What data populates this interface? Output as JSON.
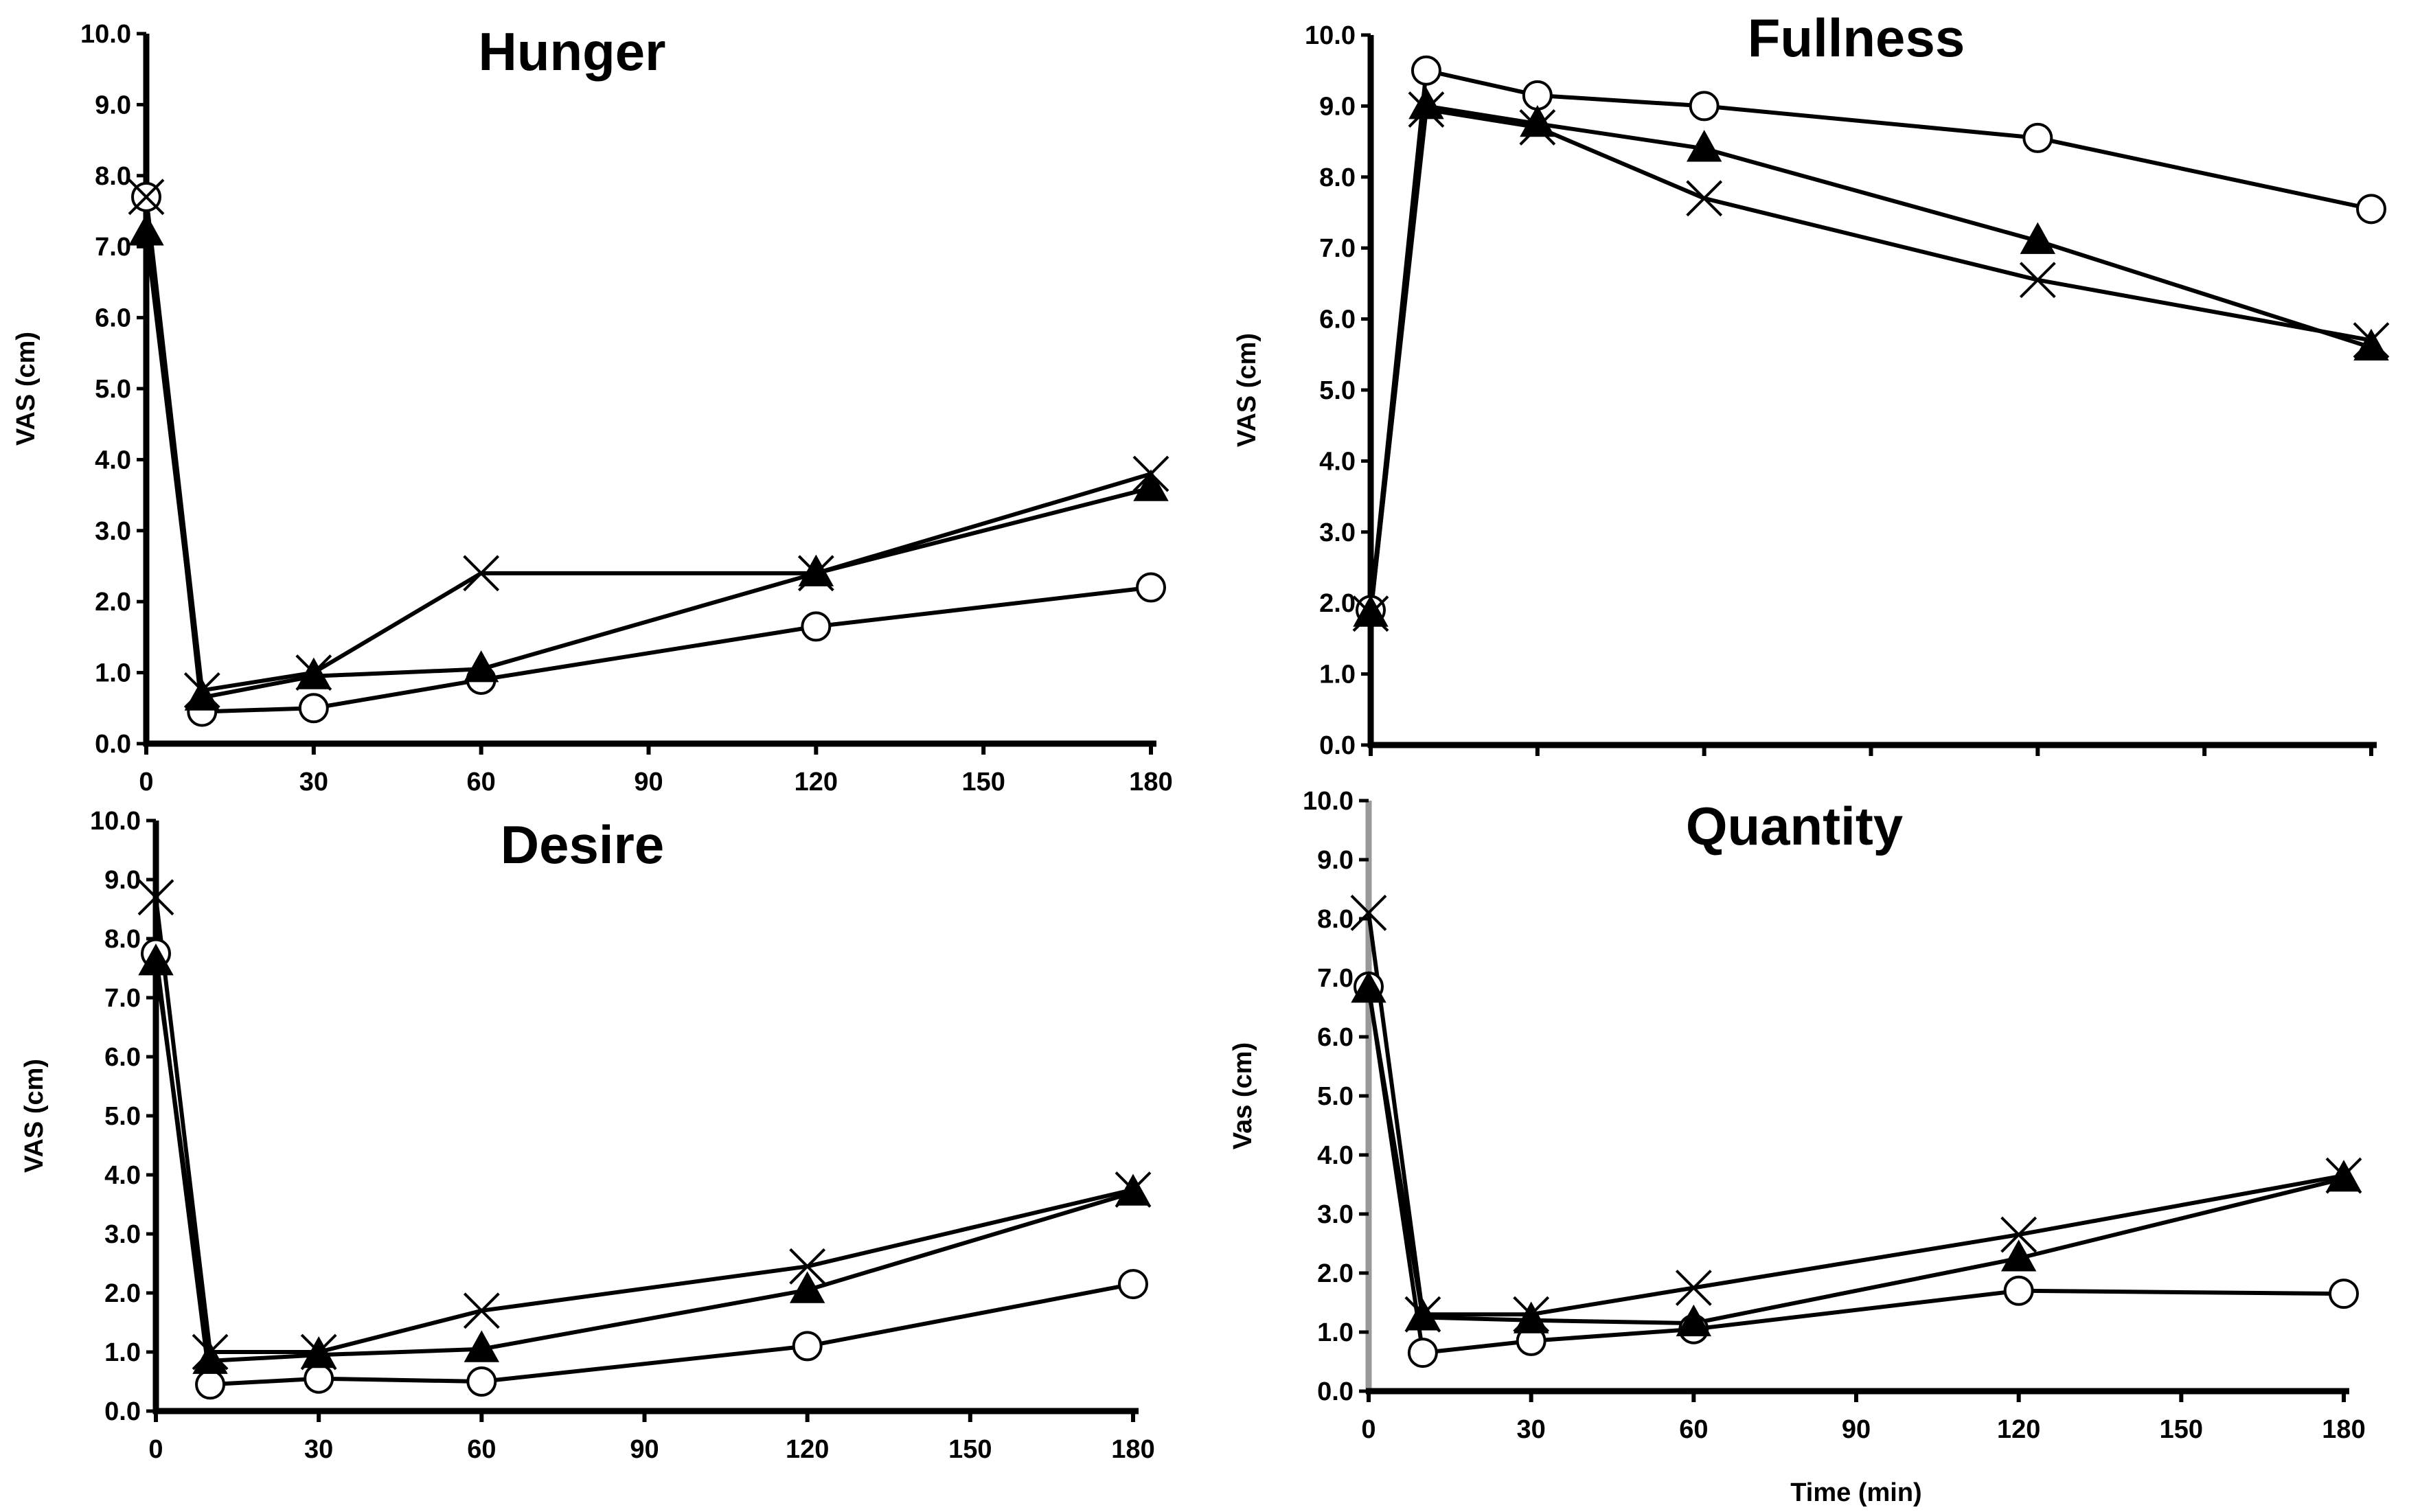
{
  "chart_data": [
    {
      "type": "line",
      "title": "Hunger",
      "xlabel": "",
      "ylabel": "VAS (cm)",
      "xlim": [
        0,
        180
      ],
      "ylim": [
        0,
        10
      ],
      "x_ticks": [
        "0",
        "30",
        "60",
        "90",
        "120",
        "150",
        "180"
      ],
      "y_ticks": [
        "0.0",
        "1.0",
        "2.0",
        "3.0",
        "4.0",
        "5.0",
        "6.0",
        "7.0",
        "8.0",
        "9.0",
        "10.0"
      ],
      "series": [
        {
          "name": "circle",
          "marker": "circle",
          "x": [
            0,
            10,
            30,
            60,
            120,
            180
          ],
          "values": [
            7.7,
            0.45,
            0.5,
            0.9,
            1.65,
            2.2
          ]
        },
        {
          "name": "triangle",
          "marker": "triangle",
          "x": [
            0,
            10,
            30,
            60,
            120,
            180
          ],
          "values": [
            7.2,
            0.65,
            0.95,
            1.05,
            2.4,
            3.6
          ]
        },
        {
          "name": "cross",
          "marker": "cross",
          "x": [
            0,
            10,
            30,
            60,
            120,
            180
          ],
          "values": [
            7.7,
            0.75,
            1.0,
            2.4,
            2.4,
            3.8
          ]
        }
      ]
    },
    {
      "type": "line",
      "title": "Fullness",
      "xlabel": "",
      "ylabel": "VAS (cm)",
      "xlim": [
        0,
        180
      ],
      "ylim": [
        0,
        10
      ],
      "x_ticks": [],
      "y_ticks": [
        "0.0",
        "1.0",
        "2.0",
        "3.0",
        "4.0",
        "5.0",
        "6.0",
        "7.0",
        "8.0",
        "9.0",
        "10.0"
      ],
      "series": [
        {
          "name": "circle",
          "marker": "circle",
          "x": [
            0,
            10,
            30,
            60,
            120,
            180
          ],
          "values": [
            1.9,
            9.5,
            9.15,
            9.0,
            8.55,
            7.55
          ]
        },
        {
          "name": "triangle",
          "marker": "triangle",
          "x": [
            0,
            10,
            30,
            60,
            120,
            180
          ],
          "values": [
            1.85,
            9.0,
            8.75,
            8.4,
            7.1,
            5.6
          ]
        },
        {
          "name": "cross",
          "marker": "cross",
          "x": [
            0,
            10,
            30,
            60,
            120,
            180
          ],
          "values": [
            1.85,
            8.95,
            8.7,
            7.7,
            6.55,
            5.7
          ]
        }
      ]
    },
    {
      "type": "line",
      "title": "Desire",
      "xlabel": "",
      "ylabel": "VAS (cm)",
      "xlim": [
        0,
        180
      ],
      "ylim": [
        0,
        10
      ],
      "x_ticks": [
        "0",
        "30",
        "60",
        "90",
        "120",
        "150",
        "180"
      ],
      "y_ticks": [
        "0.0",
        "1.0",
        "2.0",
        "3.0",
        "4.0",
        "5.0",
        "6.0",
        "7.0",
        "8.0",
        "9.0",
        "10.0"
      ],
      "series": [
        {
          "name": "circle",
          "marker": "circle",
          "x": [
            0,
            10,
            30,
            60,
            120,
            180
          ],
          "values": [
            7.75,
            0.45,
            0.55,
            0.5,
            1.1,
            2.15
          ]
        },
        {
          "name": "triangle",
          "marker": "triangle",
          "x": [
            0,
            10,
            30,
            60,
            120,
            180
          ],
          "values": [
            7.6,
            0.85,
            0.95,
            1.05,
            2.05,
            3.7
          ]
        },
        {
          "name": "cross",
          "marker": "cross",
          "x": [
            0,
            10,
            30,
            60,
            120,
            180
          ],
          "values": [
            8.7,
            1.0,
            1.0,
            1.7,
            2.45,
            3.75
          ]
        }
      ]
    },
    {
      "type": "line",
      "title": "Quantity",
      "xlabel": "Time (min)",
      "ylabel": "Vas (cm)",
      "xlim": [
        0,
        180
      ],
      "ylim": [
        0,
        10
      ],
      "x_ticks": [
        "0",
        "30",
        "60",
        "90",
        "120",
        "150",
        "180"
      ],
      "y_ticks": [
        "0.0",
        "1.0",
        "2.0",
        "3.0",
        "4.0",
        "5.0",
        "6.0",
        "7.0",
        "8.0",
        "9.0",
        "10.0"
      ],
      "series": [
        {
          "name": "circle",
          "marker": "circle",
          "x": [
            0,
            10,
            30,
            60,
            120,
            180
          ],
          "values": [
            6.85,
            0.65,
            0.85,
            1.05,
            1.7,
            1.65
          ]
        },
        {
          "name": "triangle",
          "marker": "triangle",
          "x": [
            0,
            10,
            30,
            60,
            120,
            180
          ],
          "values": [
            6.8,
            1.25,
            1.2,
            1.15,
            2.25,
            3.6
          ]
        },
        {
          "name": "cross",
          "marker": "cross",
          "x": [
            0,
            10,
            30,
            60,
            120,
            180
          ],
          "values": [
            8.1,
            1.3,
            1.3,
            1.75,
            2.65,
            3.65
          ]
        }
      ]
    }
  ]
}
